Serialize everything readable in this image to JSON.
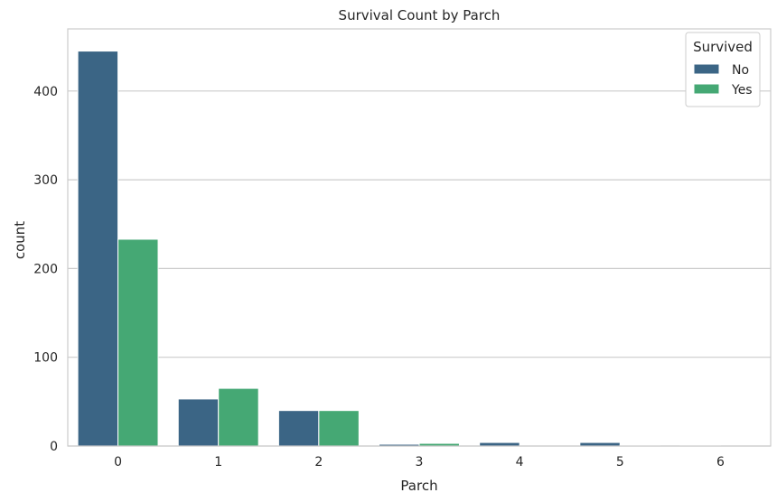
{
  "chart_data": {
    "type": "bar",
    "title": "Survival Count by Parch",
    "xlabel": "Parch",
    "ylabel": "count",
    "categories": [
      "0",
      "1",
      "2",
      "3",
      "4",
      "5",
      "6"
    ],
    "series": [
      {
        "name": "No",
        "color": "#3b6585",
        "values": [
          445,
          53,
          40,
          2,
          4,
          4,
          1
        ]
      },
      {
        "name": "Yes",
        "color": "#45a874",
        "values": [
          233,
          65,
          40,
          3,
          0,
          1,
          0
        ]
      }
    ],
    "yticks": [
      0,
      100,
      200,
      300,
      400
    ],
    "ylim": [
      0,
      470
    ],
    "grid": "horizontal",
    "legend": {
      "title": "Survived",
      "placement": "top-right"
    }
  }
}
